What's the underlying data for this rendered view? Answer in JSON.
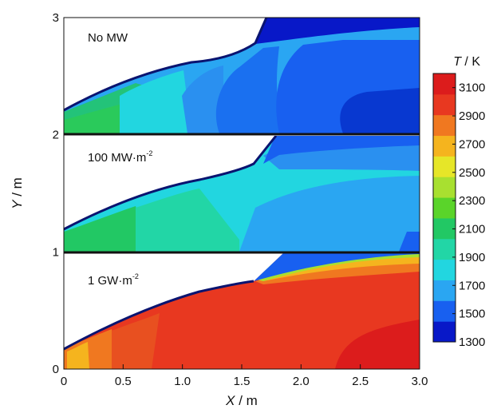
{
  "chart_data": {
    "type": "heatmap",
    "xlabel_var": "X",
    "xlabel_unit": " / m",
    "ylabel_var": "Y",
    "ylabel_unit": " / m",
    "xlim": [
      0,
      3.0
    ],
    "ylim": [
      0,
      3
    ],
    "x_ticks": [
      "0",
      "0.5",
      "1.0",
      "1.5",
      "2.0",
      "2.5",
      "3.0"
    ],
    "y_ticks": [
      "0",
      "1",
      "2",
      "3"
    ],
    "colorbar": {
      "title_var": "T",
      "title_unit": " / K",
      "range": [
        1300,
        3200
      ],
      "tick_labels": [
        "3100",
        "2900",
        "2700",
        "2500",
        "2300",
        "2100",
        "1900",
        "1700",
        "1500",
        "1300"
      ],
      "tick_values": [
        3100,
        2900,
        2700,
        2500,
        2300,
        2100,
        1900,
        1700,
        1500,
        1300
      ],
      "colors": [
        "#0818c8",
        "#1860f0",
        "#2aa6f2",
        "#22d6e0",
        "#22d6a6",
        "#22c864",
        "#5ad42a",
        "#a8e030",
        "#e6e628",
        "#f5b41e",
        "#f07820",
        "#e83820",
        "#dc1c1c"
      ]
    },
    "series": [
      {
        "name": "No MW",
        "name_sup": "",
        "panel": "top",
        "y_offset": 2,
        "dominant_T_K": 1900,
        "inlet_T_K": 2300
      },
      {
        "name": "100 MW·m",
        "name_sup": "-2",
        "panel": "middle",
        "y_offset": 1,
        "dominant_T_K": 2000,
        "inlet_T_K": 2300
      },
      {
        "name": "1 GW·m",
        "name_sup": "-2",
        "panel": "bottom",
        "y_offset": 0,
        "dominant_T_K": 3100,
        "inlet_T_K": 2800
      }
    ],
    "wall_profile": {
      "x": [
        0,
        0.4,
        0.8,
        1.2,
        1.6,
        1.9,
        3.0
      ],
      "y": [
        0.17,
        0.37,
        0.55,
        0.68,
        0.77,
        1.0,
        1.0
      ]
    },
    "shock_line": {
      "x": [
        1.6,
        3.0
      ],
      "y": [
        0.77,
        0.95
      ]
    }
  }
}
